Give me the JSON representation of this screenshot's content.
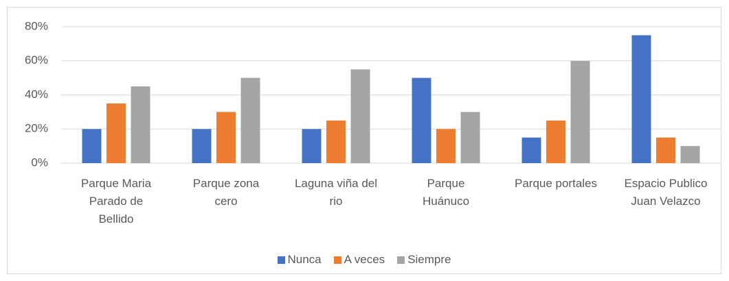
{
  "chart_data": {
    "type": "bar",
    "categories": [
      "Parque Maria\nParado de\nBellido",
      "Parque zona\ncero",
      "Laguna viña del\nrio",
      "Parque\nHuánuco",
      "Parque portales",
      "Espacio Publico\nJuan Velazco"
    ],
    "series": [
      {
        "name": "Nunca",
        "color": "#4472c4",
        "values": [
          20,
          20,
          20,
          50,
          15,
          75
        ]
      },
      {
        "name": "A veces",
        "color": "#ed7d31",
        "values": [
          35,
          30,
          25,
          20,
          25,
          15
        ]
      },
      {
        "name": "Siempre",
        "color": "#a5a5a5",
        "values": [
          45,
          50,
          55,
          30,
          60,
          10
        ]
      }
    ],
    "ylim": [
      0,
      80
    ],
    "yticks": [
      {
        "value": 0,
        "label": "0%"
      },
      {
        "value": 20,
        "label": "20%"
      },
      {
        "value": 40,
        "label": "40%"
      },
      {
        "value": 60,
        "label": "60%"
      },
      {
        "value": 80,
        "label": "80%"
      }
    ],
    "grid": true,
    "legend": "bottom"
  }
}
